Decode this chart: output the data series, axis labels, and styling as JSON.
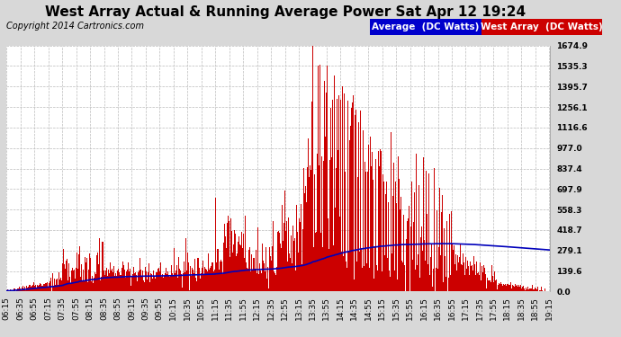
{
  "title": "West Array Actual & Running Average Power Sat Apr 12 19:24",
  "copyright": "Copyright 2014 Cartronics.com",
  "ylabel_right": [
    "0.0",
    "139.6",
    "279.1",
    "418.7",
    "558.3",
    "697.9",
    "837.4",
    "977.0",
    "1116.6",
    "1256.1",
    "1395.7",
    "1535.3",
    "1674.9"
  ],
  "ytick_vals": [
    0.0,
    139.6,
    279.1,
    418.7,
    558.3,
    697.9,
    837.4,
    977.0,
    1116.6,
    1256.1,
    1395.7,
    1535.3,
    1674.9
  ],
  "ymax": 1674.9,
  "bg_color": "#d8d8d8",
  "plot_bg_color": "#ffffff",
  "grid_color": "#bbbbbb",
  "bar_color": "#cc0000",
  "line_color": "#0000bb",
  "legend_avg_bg": "#0000cc",
  "legend_west_bg": "#cc0000",
  "title_fontsize": 11,
  "copyright_fontsize": 7,
  "tick_fontsize": 6.5,
  "legend_fontsize": 7.5,
  "x_tick_labels": [
    "06:15",
    "06:35",
    "06:55",
    "07:15",
    "07:35",
    "07:55",
    "08:15",
    "08:35",
    "08:55",
    "09:15",
    "09:35",
    "09:55",
    "10:15",
    "10:35",
    "10:55",
    "11:15",
    "11:35",
    "11:55",
    "12:15",
    "12:35",
    "12:55",
    "13:15",
    "13:35",
    "13:55",
    "14:15",
    "14:35",
    "14:55",
    "15:15",
    "15:35",
    "15:55",
    "16:15",
    "16:35",
    "16:55",
    "17:15",
    "17:35",
    "17:55",
    "18:15",
    "18:35",
    "18:55",
    "19:15"
  ],
  "num_points": 780
}
